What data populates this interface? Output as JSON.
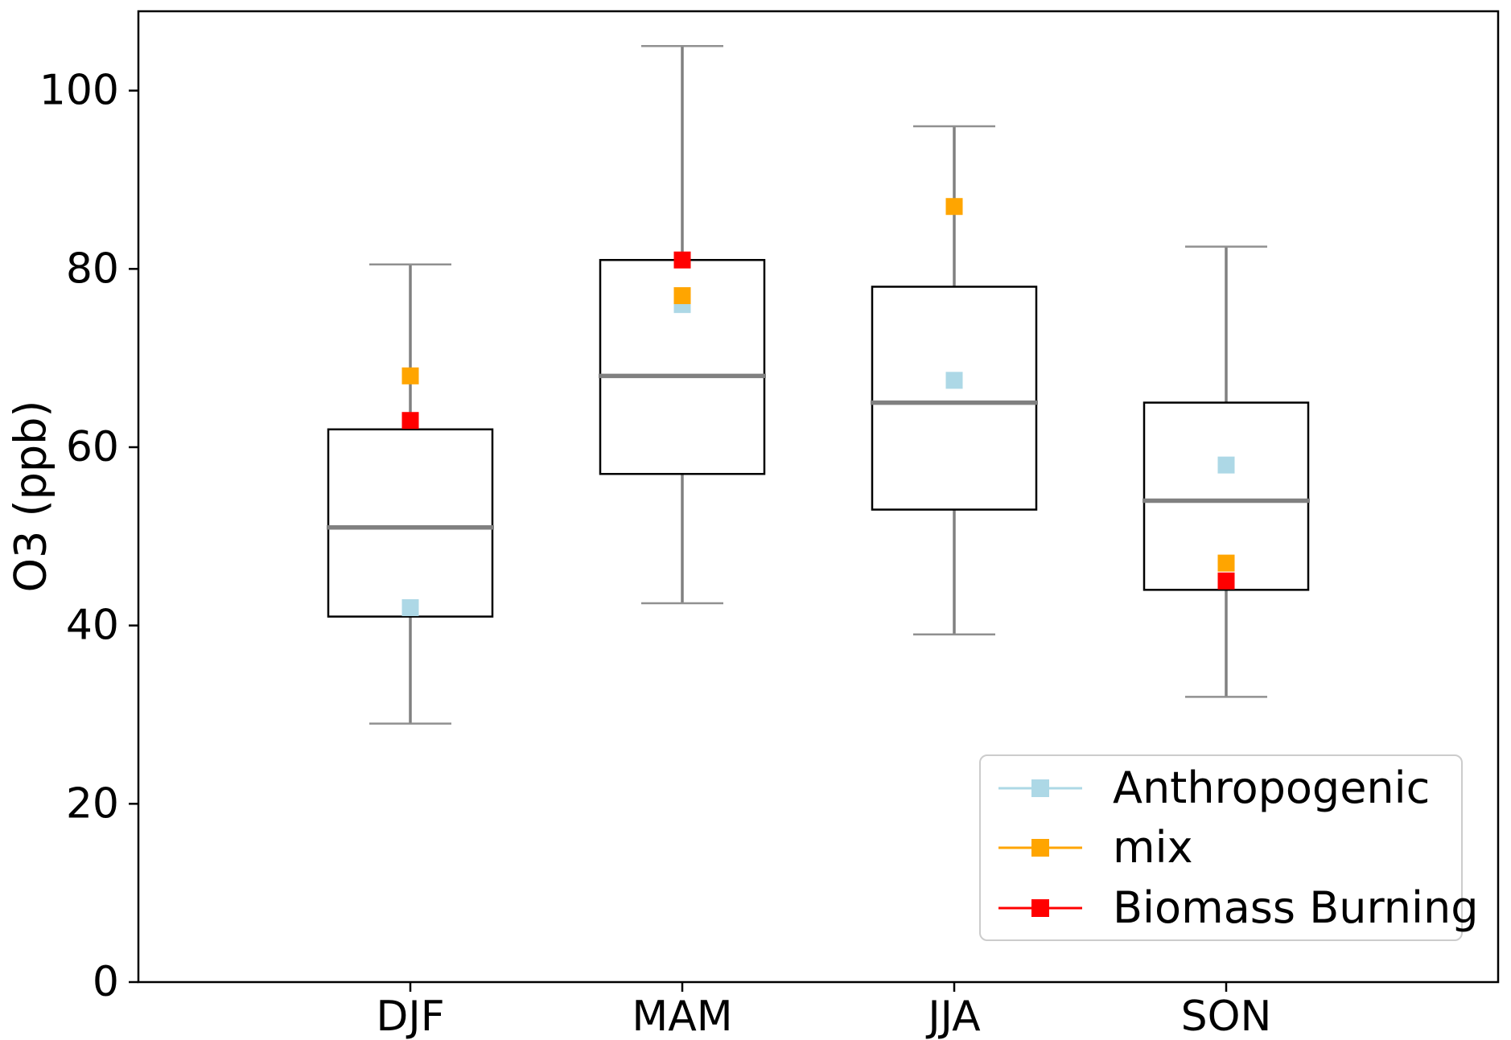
{
  "figure": {
    "background": "#ffffff"
  },
  "axes": {
    "ylabel": "O3 (ppb)",
    "yticks": [
      0,
      20,
      40,
      60,
      80,
      100
    ],
    "xticklabels": [
      "DJF",
      "MAM",
      "JJA",
      "SON"
    ]
  },
  "chart_data": {
    "type": "boxplot",
    "title": "",
    "xlabel": "",
    "ylabel": "O3 (ppb)",
    "categories": [
      "DJF",
      "MAM",
      "JJA",
      "SON"
    ],
    "ylim": [
      0,
      108.9
    ],
    "yticks": [
      0,
      20,
      40,
      60,
      80,
      100
    ],
    "grid": false,
    "legend_position": "lower right",
    "boxes": [
      {
        "season": "DJF",
        "whisker_low": 29,
        "q1": 41,
        "median": 51,
        "q3": 62,
        "whisker_high": 80.5
      },
      {
        "season": "MAM",
        "whisker_low": 42.5,
        "q1": 57,
        "median": 68,
        "q3": 81,
        "whisker_high": 105
      },
      {
        "season": "JJA",
        "whisker_low": 39,
        "q1": 53,
        "median": 65,
        "q3": 78,
        "whisker_high": 96
      },
      {
        "season": "SON",
        "whisker_low": 32,
        "q1": 44,
        "median": 54,
        "q3": 65,
        "whisker_high": 82.5
      }
    ],
    "series": [
      {
        "name": "Anthropogenic",
        "marker": "square",
        "color": "#ADD8E6",
        "values": [
          42,
          76,
          67.5,
          58
        ]
      },
      {
        "name": "mix",
        "marker": "square",
        "color": "#FFA500",
        "values": [
          68,
          77,
          87,
          47
        ]
      },
      {
        "name": "Biomass Burning",
        "marker": "square",
        "color": "#FF0000",
        "values": [
          63,
          81,
          null,
          45
        ]
      }
    ]
  },
  "legend": {
    "entries": [
      {
        "label": "Anthropogenic",
        "color": "#ADD8E6"
      },
      {
        "label": "mix",
        "color": "#FFA500"
      },
      {
        "label": "Biomass Burning",
        "color": "#FF0000"
      }
    ]
  },
  "colors": {
    "box_edge": "#000000",
    "box_fill": "#ffffff",
    "whisker": "#808080",
    "cap": "#909090",
    "median": "#808080",
    "spine": "#000000",
    "legend_border": "#cccccc",
    "text": "#000000"
  }
}
